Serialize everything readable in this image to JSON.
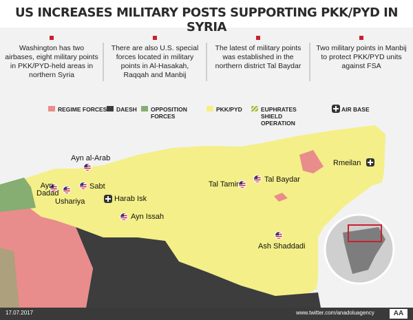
{
  "header": {
    "title": "US INCREASES MILITARY POSTS SUPPORTING PKK/PYD IN SYRIA"
  },
  "notes": [
    "Washington has two airbases, eight military points in PKK/PYD-held areas in northern Syria",
    "There are also U.S. special forces located in military points in Al-Hasakah, Raqqah and Manbij",
    "The latest of military points was established in the northern district Tal Baydar",
    "Two military points in Manbij to protect PKK/PYD units against FSA"
  ],
  "legend": {
    "items": [
      {
        "label": "REGIME FORCES",
        "color": "#e98c8c"
      },
      {
        "label": "DAESH",
        "color": "#3d3d3d"
      },
      {
        "label": "OPPOSITION FORCES",
        "color": "#86ad72"
      },
      {
        "label": "PKK/PYD",
        "color": "#f4ef88"
      },
      {
        "label": "EUPHRATES SHIELD OPERATION",
        "color": "#8fb06a"
      },
      {
        "label": "AIR BASE",
        "color": "#333333"
      }
    ]
  },
  "places": [
    {
      "label": "Ayn al-Arab",
      "marker": "flag"
    },
    {
      "label": "Ayn Dadad",
      "marker": "flag"
    },
    {
      "label": "Ushariya",
      "marker": "flag"
    },
    {
      "label": "Sabt",
      "marker": "flag"
    },
    {
      "label": "Harab Isk",
      "marker": "airbase"
    },
    {
      "label": "Ayn Issah",
      "marker": "flag"
    },
    {
      "label": "Tal Tamir",
      "marker": "flag"
    },
    {
      "label": "Tal Baydar",
      "marker": "flag"
    },
    {
      "label": "Rmeilan",
      "marker": "airbase"
    },
    {
      "label": "Ash Shaddadi",
      "marker": "flag"
    }
  ],
  "footer": {
    "date": "17.07.2017",
    "source": "www.twitter.com/anadoluagency",
    "logo": "AA"
  }
}
